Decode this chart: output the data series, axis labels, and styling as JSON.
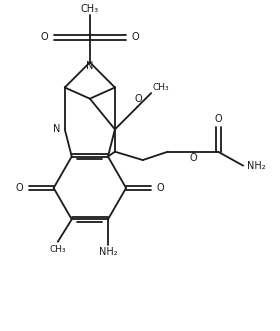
{
  "bg": "#ffffff",
  "lc": "#1a1a1a",
  "lw": 1.3,
  "fs": 7.0,
  "figsize": [
    2.8,
    3.31
  ],
  "dpi": 100,
  "xlim": [
    0,
    10
  ],
  "ylim": [
    0,
    11.8
  ]
}
